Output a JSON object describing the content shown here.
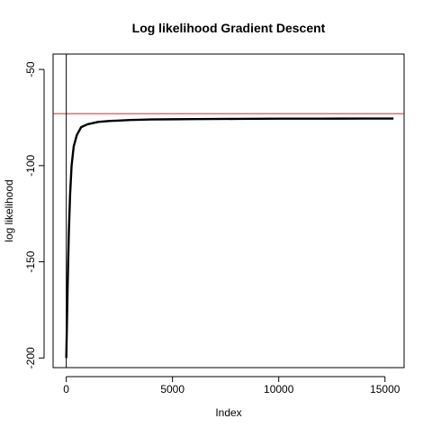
{
  "chart_data": {
    "type": "line",
    "title": "Log likelihood Gradient Descent",
    "xlabel": "Index",
    "ylabel": "log likelihood",
    "xlim": [
      -620,
      15900
    ],
    "ylim": [
      -205,
      -42
    ],
    "x_ticks": [
      0,
      5000,
      10000,
      15000
    ],
    "x_tick_labels": [
      "0",
      "5000",
      "10000",
      "15000"
    ],
    "y_ticks": [
      -200,
      -150,
      -100,
      -50
    ],
    "y_tick_labels": [
      "-200",
      "-150",
      "-100",
      "-50"
    ],
    "grid": false,
    "legend": "none",
    "series": [
      {
        "name": "log likelihood",
        "color": "#000000",
        "x": [
          1,
          60,
          120,
          180,
          250,
          350,
          500,
          700,
          1000,
          1500,
          2000,
          3000,
          4000,
          5000,
          6000,
          8000,
          10000,
          12000,
          14000,
          15400
        ],
        "y": [
          -200,
          -165,
          -135,
          -115,
          -100,
          -90,
          -84,
          -80,
          -78.5,
          -77.3,
          -76.8,
          -76.3,
          -76,
          -75.9,
          -75.8,
          -75.7,
          -75.6,
          -75.6,
          -75.5,
          -75.5
        ]
      }
    ],
    "reference_lines": [
      {
        "orientation": "horizontal",
        "value": -73,
        "color": "#dd2222"
      },
      {
        "orientation": "vertical",
        "value": 0,
        "color": "#000000"
      }
    ]
  }
}
